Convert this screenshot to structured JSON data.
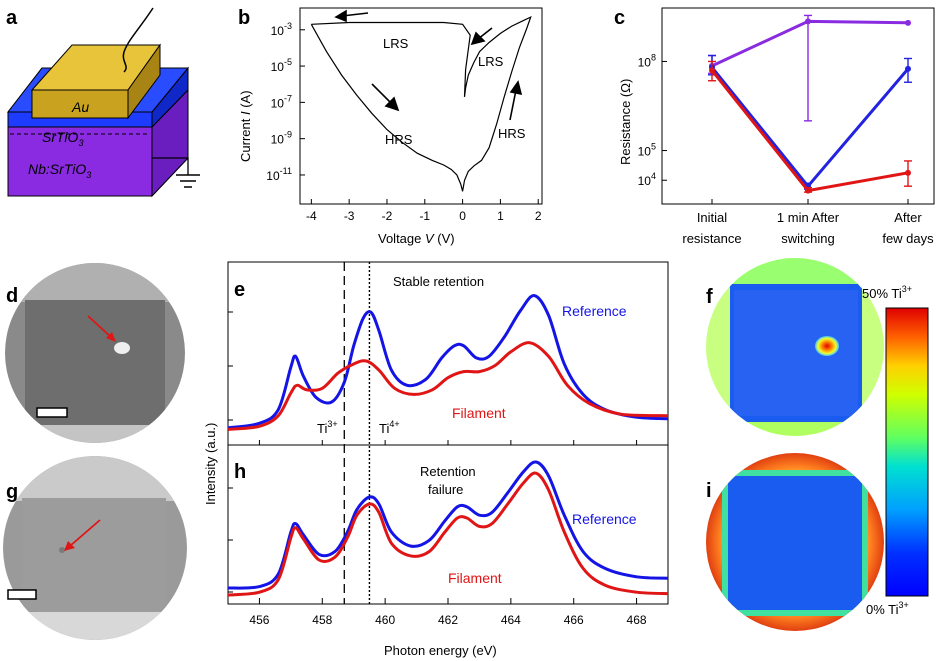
{
  "panels": {
    "a": {
      "label": "a",
      "layers": [
        "Au",
        "SrTiO",
        "3",
        "Nb:SrTiO",
        "3"
      ]
    },
    "b": {
      "label": "b",
      "annotations": [
        "LRS",
        "LRS",
        "HRS",
        "HRS"
      ]
    },
    "c": {
      "label": "c"
    },
    "d": {
      "label": "d"
    },
    "e": {
      "label": "e",
      "annotation": "Stable retention"
    },
    "f": {
      "label": "f"
    },
    "g": {
      "label": "g"
    },
    "h": {
      "label": "h",
      "annotation_line1": "Retention",
      "annotation_line2": "failure"
    },
    "i": {
      "label": "i"
    },
    "eh_shared": {
      "ti3_label": "Ti",
      "ti3_sup": "3+",
      "ti4_label": "Ti",
      "ti4_sup": "4+"
    },
    "colorbar": {
      "top_label": "50% Ti",
      "top_sup": "3+",
      "bottom_label": "0% Ti",
      "bottom_sup": "3+"
    }
  },
  "chart_data": [
    {
      "panel": "b",
      "type": "line",
      "xlabel": "Voltage V (V)",
      "ylabel": "Current I (A)",
      "xlim": [
        -4.3,
        2.1
      ],
      "ylim_log10": [
        -12.6,
        -1.8
      ],
      "yscale": "log",
      "x_ticks": [
        "-4",
        "-3",
        "-2",
        "-1",
        "0",
        "1",
        "2"
      ],
      "y_ticks": [
        "10",
        "10",
        "10",
        "10",
        "10",
        "10"
      ],
      "y_tick_exponents": [
        "-3",
        "-5",
        "-7",
        "-9",
        "-11"
      ],
      "series": [
        {
          "x": [
            -4.0,
            -3.6,
            -3.2,
            -2.8,
            -2.4,
            -2.0,
            -1.6,
            -1.2,
            -0.8,
            -0.5,
            -0.3,
            -0.15,
            -0.05,
            0.0,
            0.05,
            0.15,
            0.3,
            0.5,
            0.7,
            0.9,
            1.1,
            1.3,
            1.5,
            1.7,
            1.8,
            1.6,
            1.3,
            1.0,
            0.7,
            0.45,
            0.3,
            0.15,
            0.08,
            0.05,
            0.08,
            0.2,
            0.0,
            -0.5,
            -1.0,
            -2.0,
            -3.0,
            -4.0
          ],
          "y_log10": [
            -2.7,
            -4.2,
            -5.5,
            -6.6,
            -7.6,
            -8.5,
            -9.2,
            -9.8,
            -10.2,
            -10.45,
            -10.7,
            -11.0,
            -11.5,
            -11.9,
            -11.3,
            -10.8,
            -10.5,
            -10.2,
            -9.5,
            -8.2,
            -6.7,
            -5.3,
            -4.0,
            -2.9,
            -2.3,
            -2.5,
            -2.8,
            -3.2,
            -3.7,
            -4.2,
            -4.8,
            -5.5,
            -6.2,
            -6.7,
            -5.2,
            -3.3,
            -2.7,
            -2.6,
            -2.6,
            -2.6,
            -2.6,
            -2.7
          ]
        }
      ]
    },
    {
      "panel": "c",
      "type": "line",
      "xlabel": "",
      "ylabel": "Resistance (Ω)",
      "yscale": "log",
      "ylim_log10": [
        3.2,
        9.8
      ],
      "categories": [
        "Initial resistance",
        "1 min After switching",
        "After few days"
      ],
      "y_ticks": [
        "10",
        "10",
        "10"
      ],
      "y_tick_exponents": [
        "4",
        "5",
        "8"
      ],
      "series": [
        {
          "color": "#8a2be2",
          "values_log10": [
            7.85,
            9.35,
            9.3
          ],
          "err_lo_log10": [
            7.6,
            6.0,
            9.3
          ],
          "err_hi_log10": [
            8.2,
            9.55,
            9.3
          ]
        },
        {
          "color": "#2222e0",
          "values_log10": [
            7.8,
            3.8,
            7.75
          ],
          "err_lo_log10": [
            7.55,
            3.7,
            7.3
          ],
          "err_hi_log10": [
            8.2,
            3.9,
            8.1
          ]
        },
        {
          "color": "#e01515",
          "values_log10": [
            7.7,
            3.65,
            4.25
          ],
          "err_lo_log10": [
            7.35,
            3.6,
            3.8
          ],
          "err_hi_log10": [
            8.0,
            3.75,
            4.65
          ]
        }
      ]
    },
    {
      "panel": "e",
      "type": "line",
      "xlabel": "Photon energy (eV)",
      "ylabel": "Intensity (a.u.)",
      "xlim": [
        455,
        469
      ],
      "ylim": [
        0,
        1
      ],
      "x_ticks": [
        "456",
        "458",
        "460",
        "462",
        "464",
        "466",
        "468"
      ],
      "vlines": [
        458.7,
        459.5
      ],
      "series": [
        {
          "name": "Reference",
          "color": "#1414e6",
          "x": [
            455,
            456,
            456.6,
            457.0,
            457.15,
            457.4,
            457.8,
            458.3,
            458.7,
            459.0,
            459.3,
            459.55,
            459.8,
            460.2,
            460.7,
            461.3,
            461.8,
            462.2,
            462.5,
            462.9,
            463.3,
            463.8,
            464.3,
            464.75,
            465.2,
            465.7,
            466.3,
            467.0,
            468.0,
            469.0
          ],
          "y": [
            0.08,
            0.11,
            0.2,
            0.48,
            0.55,
            0.42,
            0.28,
            0.25,
            0.38,
            0.62,
            0.8,
            0.84,
            0.72,
            0.46,
            0.36,
            0.4,
            0.54,
            0.62,
            0.62,
            0.54,
            0.55,
            0.68,
            0.85,
            0.95,
            0.82,
            0.5,
            0.3,
            0.2,
            0.15,
            0.14
          ]
        },
        {
          "name": "Filament",
          "color": "#e01515",
          "x": [
            455,
            456,
            456.6,
            457.0,
            457.2,
            457.5,
            458.0,
            458.5,
            459.0,
            459.4,
            459.8,
            460.3,
            460.9,
            461.5,
            462.0,
            462.5,
            463.0,
            463.5,
            464.0,
            464.6,
            465.2,
            465.8,
            466.5,
            467.5,
            469.0
          ],
          "y": [
            0.07,
            0.09,
            0.16,
            0.31,
            0.36,
            0.33,
            0.34,
            0.44,
            0.5,
            0.52,
            0.46,
            0.34,
            0.3,
            0.33,
            0.41,
            0.45,
            0.45,
            0.49,
            0.58,
            0.64,
            0.55,
            0.36,
            0.24,
            0.17,
            0.16
          ]
        }
      ]
    },
    {
      "panel": "h",
      "type": "line",
      "xlabel": "Photon energy (eV)",
      "ylabel": "Intensity (a.u.)",
      "xlim": [
        455,
        469
      ],
      "ylim": [
        0,
        1
      ],
      "x_ticks": [
        "456",
        "458",
        "460",
        "462",
        "464",
        "466",
        "468"
      ],
      "vlines": [
        458.7,
        459.5
      ],
      "series": [
        {
          "name": "Reference",
          "color": "#1414e6",
          "x": [
            455,
            456,
            456.6,
            457.0,
            457.15,
            457.4,
            457.9,
            458.4,
            458.8,
            459.1,
            459.5,
            459.8,
            460.2,
            460.8,
            461.4,
            461.9,
            462.3,
            462.6,
            463.0,
            463.4,
            463.9,
            464.4,
            464.8,
            465.2,
            465.7,
            466.3,
            467.0,
            468.0,
            469.0
          ],
          "y": [
            0.1,
            0.11,
            0.2,
            0.5,
            0.56,
            0.48,
            0.34,
            0.36,
            0.5,
            0.66,
            0.75,
            0.7,
            0.5,
            0.4,
            0.44,
            0.58,
            0.68,
            0.68,
            0.62,
            0.64,
            0.78,
            0.93,
            1.0,
            0.9,
            0.62,
            0.36,
            0.24,
            0.18,
            0.17
          ]
        },
        {
          "name": "Filament",
          "color": "#e01515",
          "x": [
            455,
            456,
            456.6,
            457.0,
            457.15,
            457.4,
            457.9,
            458.4,
            458.8,
            459.1,
            459.5,
            459.8,
            460.2,
            460.8,
            461.4,
            461.9,
            462.3,
            462.6,
            463.0,
            463.4,
            463.9,
            464.4,
            464.8,
            465.2,
            465.7,
            466.3,
            467.0,
            468.0,
            469.0
          ],
          "y": [
            0.05,
            0.07,
            0.16,
            0.46,
            0.53,
            0.45,
            0.3,
            0.32,
            0.46,
            0.62,
            0.7,
            0.64,
            0.42,
            0.33,
            0.36,
            0.5,
            0.6,
            0.6,
            0.54,
            0.56,
            0.7,
            0.85,
            0.92,
            0.8,
            0.5,
            0.24,
            0.12,
            0.07,
            0.06
          ]
        }
      ]
    }
  ],
  "axis_text": {
    "b_xlabel_main": "Voltage ",
    "b_xlabel_var": "V",
    "b_xlabel_unit": " (V)",
    "b_ylabel_main": "Current ",
    "b_ylabel_var": "I",
    "b_ylabel_unit": " (A)",
    "c_ylabel": "Resistance (Ω)",
    "c_cat1_l1": "Initial",
    "c_cat1_l2": "resistance",
    "c_cat2_l1": "1 min After",
    "c_cat2_l2": "switching",
    "c_cat3_l1": "After",
    "c_cat3_l2": "few days",
    "eh_xlabel": "Photon energy (eV)",
    "eh_ylabel": "Intensity (a.u.)",
    "e_ref": "Reference",
    "e_fil": "Filament",
    "h_ref": "Reference",
    "h_fil": "Filament"
  }
}
